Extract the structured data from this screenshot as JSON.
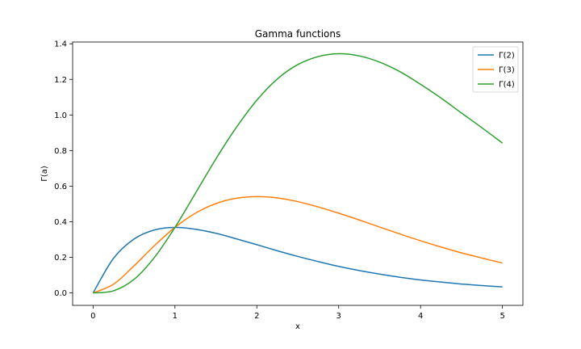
{
  "chart_data": {
    "type": "line",
    "title": "Gamma functions",
    "xlabel": "x",
    "ylabel": "Γ(a)",
    "xlim": [
      -0.25,
      5.25
    ],
    "ylim": [
      -0.07,
      1.41
    ],
    "xticks": [
      0,
      1,
      2,
      3,
      4,
      5
    ],
    "xtick_labels": [
      "0",
      "1",
      "2",
      "3",
      "4",
      "5"
    ],
    "yticks": [
      0.0,
      0.2,
      0.4,
      0.6,
      0.8,
      1.0,
      1.2,
      1.4
    ],
    "ytick_labels": [
      "0.0",
      "0.2",
      "0.4",
      "0.6",
      "0.8",
      "1.0",
      "1.2",
      "1.4"
    ],
    "grid": false,
    "legend_position": "top-right",
    "x": [
      0.0,
      0.25,
      0.5,
      0.75,
      1.0,
      1.25,
      1.5,
      1.75,
      2.0,
      2.25,
      2.5,
      2.75,
      3.0,
      3.25,
      3.5,
      3.75,
      4.0,
      4.25,
      4.5,
      4.75,
      5.0
    ],
    "series": [
      {
        "name": "Γ(2)",
        "color": "#1f77b4",
        "values": [
          0.0,
          0.195,
          0.303,
          0.354,
          0.368,
          0.358,
          0.335,
          0.304,
          0.271,
          0.237,
          0.205,
          0.176,
          0.149,
          0.126,
          0.106,
          0.088,
          0.073,
          0.061,
          0.05,
          0.041,
          0.034
        ]
      },
      {
        "name": "Γ(3)",
        "color": "#ff7f0e",
        "values": [
          0.0,
          0.049,
          0.152,
          0.266,
          0.368,
          0.448,
          0.502,
          0.532,
          0.541,
          0.534,
          0.513,
          0.483,
          0.448,
          0.41,
          0.37,
          0.331,
          0.293,
          0.258,
          0.225,
          0.196,
          0.168
        ]
      },
      {
        "name": "Γ(4)",
        "color": "#2ca02c",
        "values": [
          0.0,
          0.012,
          0.076,
          0.2,
          0.368,
          0.56,
          0.753,
          0.93,
          1.083,
          1.202,
          1.283,
          1.328,
          1.344,
          1.332,
          1.297,
          1.243,
          1.172,
          1.095,
          1.011,
          0.928,
          0.842
        ]
      }
    ]
  }
}
